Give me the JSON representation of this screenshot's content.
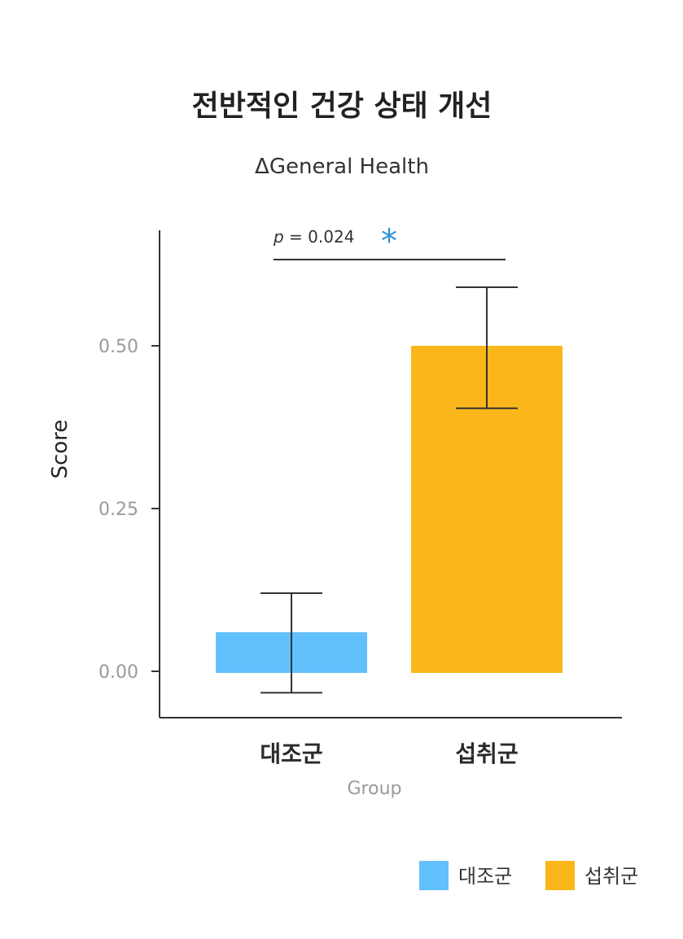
{
  "chart_data": {
    "type": "bar",
    "title": "전반적인 건강 상태 개선",
    "subtitle": "ΔGeneral Health",
    "xlabel": "Group",
    "ylabel": "Score",
    "categories": [
      "대조군",
      "섭취군"
    ],
    "values": [
      0.06,
      0.5
    ],
    "error_low": [
      -0.033,
      0.404
    ],
    "error_high": [
      0.12,
      0.59
    ],
    "colors": [
      "#62C0FC",
      "#FBB61B"
    ],
    "y_ticks": [
      0.0,
      0.25,
      0.5
    ],
    "y_tick_labels": [
      "0.00",
      "0.25",
      "0.50"
    ],
    "ylim": [
      -0.07,
      0.68
    ],
    "grid": false,
    "annotation": {
      "p_label": "p",
      "p_text": " = 0.024",
      "significance": "*"
    },
    "legend": {
      "position": "bottom-right",
      "entries": [
        "대조군",
        "섭취군"
      ]
    }
  }
}
